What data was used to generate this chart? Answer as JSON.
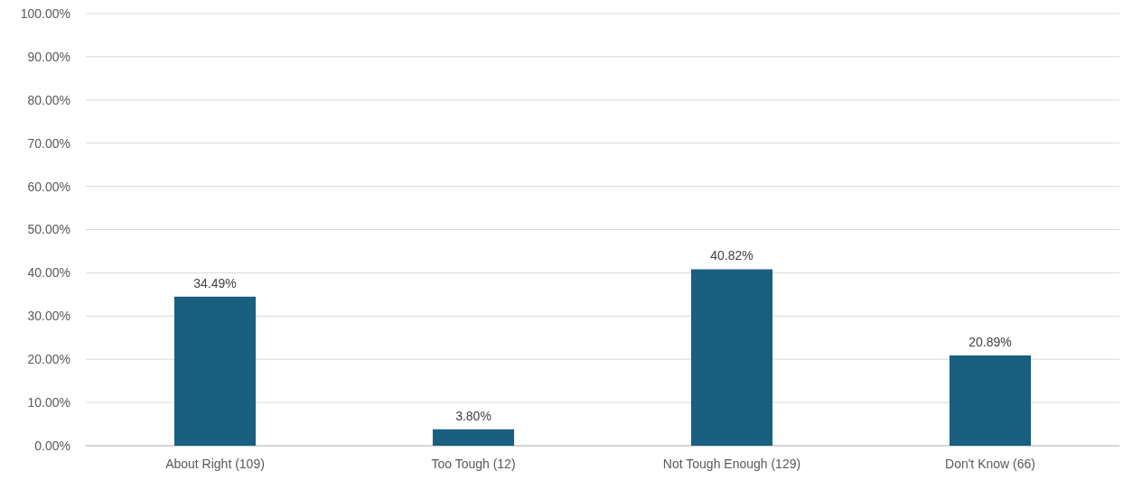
{
  "chart_data": {
    "type": "bar",
    "categories": [
      "About Right (109)",
      "Too Tough (12)",
      "Not Tough Enough (129)",
      "Don't Know (66)"
    ],
    "values": [
      34.49,
      3.8,
      40.82,
      20.89
    ],
    "value_labels": [
      "34.49%",
      "3.80%",
      "40.82%",
      "20.89%"
    ],
    "color": "#185f80",
    "ylim": [
      0,
      100
    ],
    "yticks": [
      {
        "value": 0,
        "label": "0.00%"
      },
      {
        "value": 10,
        "label": "10.00%"
      },
      {
        "value": 20,
        "label": "20.00%"
      },
      {
        "value": 30,
        "label": "30.00%"
      },
      {
        "value": 40,
        "label": "40.00%"
      },
      {
        "value": 50,
        "label": "50.00%"
      },
      {
        "value": 60,
        "label": "60.00%"
      },
      {
        "value": 70,
        "label": "70.00%"
      },
      {
        "value": 80,
        "label": "80.00%"
      },
      {
        "value": 90,
        "label": "90.00%"
      },
      {
        "value": 100,
        "label": "100.00%"
      }
    ],
    "grid": "y"
  }
}
